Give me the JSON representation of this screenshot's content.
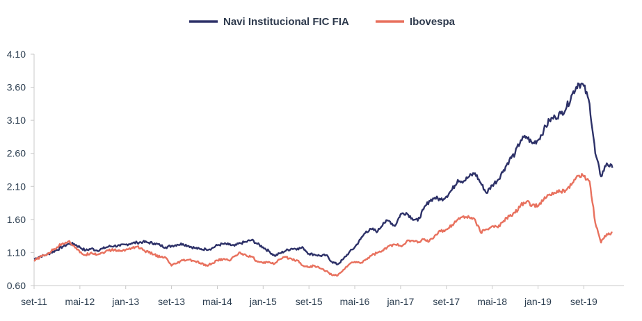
{
  "chart_data": {
    "type": "line",
    "title": "",
    "xlabel": "",
    "ylabel": "",
    "ylim": [
      0.6,
      4.1
    ],
    "yticks": [
      "0.60",
      "1.10",
      "1.60",
      "2.10",
      "2.60",
      "3.10",
      "3.60",
      "4.10"
    ],
    "xticks": [
      "set-11",
      "mai-12",
      "jan-13",
      "set-13",
      "mai-14",
      "jan-15",
      "set-15",
      "mai-16",
      "jan-17",
      "set-17",
      "mai-18",
      "jan-19",
      "set-19"
    ],
    "xlim": [
      0,
      103
    ],
    "x_unit": "months since set-11",
    "grid": false,
    "legend_position": "top-center",
    "series": [
      {
        "name": "Navi Institucional FIC FIA",
        "color": "#2d3168",
        "points": [
          [
            0,
            1.0
          ],
          [
            1,
            1.04
          ],
          [
            2,
            1.06
          ],
          [
            3,
            1.1
          ],
          [
            4,
            1.14
          ],
          [
            5,
            1.19
          ],
          [
            6,
            1.23
          ],
          [
            7,
            1.23
          ],
          [
            8,
            1.18
          ],
          [
            9,
            1.13
          ],
          [
            10,
            1.16
          ],
          [
            11,
            1.13
          ],
          [
            12,
            1.16
          ],
          [
            13,
            1.19
          ],
          [
            14,
            1.2
          ],
          [
            15,
            1.2
          ],
          [
            16,
            1.22
          ],
          [
            17,
            1.24
          ],
          [
            18,
            1.25
          ],
          [
            19,
            1.26
          ],
          [
            20,
            1.25
          ],
          [
            21,
            1.24
          ],
          [
            22,
            1.21
          ],
          [
            23,
            1.18
          ],
          [
            24,
            1.2
          ],
          [
            25,
            1.22
          ],
          [
            26,
            1.23
          ],
          [
            27,
            1.2
          ],
          [
            28,
            1.17
          ],
          [
            29,
            1.15
          ],
          [
            30,
            1.15
          ],
          [
            31,
            1.16
          ],
          [
            32,
            1.21
          ],
          [
            33,
            1.23
          ],
          [
            34,
            1.22
          ],
          [
            35,
            1.2
          ],
          [
            36,
            1.24
          ],
          [
            37,
            1.26
          ],
          [
            38,
            1.29
          ],
          [
            39,
            1.23
          ],
          [
            40,
            1.18
          ],
          [
            41,
            1.12
          ],
          [
            42,
            1.05
          ],
          [
            43,
            1.09
          ],
          [
            44,
            1.13
          ],
          [
            45,
            1.16
          ],
          [
            46,
            1.16
          ],
          [
            47,
            1.17
          ],
          [
            48,
            1.08
          ],
          [
            49,
            1.07
          ],
          [
            50,
            1.05
          ],
          [
            51,
            1.06
          ],
          [
            52,
            0.96
          ],
          [
            53,
            0.92
          ],
          [
            54,
            1.0
          ],
          [
            55,
            1.1
          ],
          [
            56,
            1.18
          ],
          [
            57,
            1.3
          ],
          [
            58,
            1.42
          ],
          [
            59,
            1.45
          ],
          [
            60,
            1.42
          ],
          [
            61,
            1.55
          ],
          [
            62,
            1.58
          ],
          [
            63,
            1.5
          ],
          [
            64,
            1.68
          ],
          [
            65,
            1.7
          ],
          [
            66,
            1.62
          ],
          [
            67,
            1.58
          ],
          [
            68,
            1.75
          ],
          [
            69,
            1.88
          ],
          [
            70,
            1.93
          ],
          [
            71,
            1.9
          ],
          [
            72,
            1.95
          ],
          [
            73,
            2.05
          ],
          [
            74,
            2.2
          ],
          [
            75,
            2.18
          ],
          [
            76,
            2.25
          ],
          [
            77,
            2.3
          ],
          [
            78,
            2.15
          ],
          [
            79,
            2.0
          ],
          [
            80,
            2.12
          ],
          [
            81,
            2.2
          ],
          [
            82,
            2.35
          ],
          [
            83,
            2.5
          ],
          [
            84,
            2.6
          ],
          [
            85,
            2.8
          ],
          [
            86,
            2.85
          ],
          [
            87,
            2.75
          ],
          [
            88,
            2.8
          ],
          [
            89,
            2.95
          ],
          [
            90,
            3.1
          ],
          [
            91,
            3.15
          ],
          [
            92,
            3.2
          ],
          [
            93,
            3.3
          ],
          [
            94,
            3.5
          ],
          [
            95,
            3.66
          ],
          [
            96,
            3.62
          ],
          [
            97,
            3.35
          ],
          [
            98,
            2.6
          ],
          [
            99,
            2.25
          ],
          [
            100,
            2.45
          ],
          [
            101,
            2.38
          ]
        ]
      },
      {
        "name": "Ibovespa",
        "color": "#e8715e",
        "points": [
          [
            0,
            0.97
          ],
          [
            1,
            1.03
          ],
          [
            2,
            1.06
          ],
          [
            3,
            1.12
          ],
          [
            4,
            1.18
          ],
          [
            5,
            1.24
          ],
          [
            6,
            1.27
          ],
          [
            7,
            1.2
          ],
          [
            8,
            1.1
          ],
          [
            9,
            1.06
          ],
          [
            10,
            1.1
          ],
          [
            11,
            1.07
          ],
          [
            12,
            1.1
          ],
          [
            13,
            1.13
          ],
          [
            14,
            1.14
          ],
          [
            15,
            1.12
          ],
          [
            16,
            1.14
          ],
          [
            17,
            1.17
          ],
          [
            18,
            1.19
          ],
          [
            19,
            1.14
          ],
          [
            20,
            1.1
          ],
          [
            21,
            1.07
          ],
          [
            22,
            1.03
          ],
          [
            23,
            1.02
          ],
          [
            24,
            0.9
          ],
          [
            25,
            0.94
          ],
          [
            26,
            0.98
          ],
          [
            27,
            0.99
          ],
          [
            28,
            0.97
          ],
          [
            29,
            0.94
          ],
          [
            30,
            0.9
          ],
          [
            31,
            0.93
          ],
          [
            32,
            0.98
          ],
          [
            33,
            1.0
          ],
          [
            34,
            0.98
          ],
          [
            35,
            1.04
          ],
          [
            36,
            1.1
          ],
          [
            37,
            1.06
          ],
          [
            38,
            1.04
          ],
          [
            39,
            0.96
          ],
          [
            40,
            0.94
          ],
          [
            41,
            0.96
          ],
          [
            42,
            0.93
          ],
          [
            43,
            1.0
          ],
          [
            44,
            1.03
          ],
          [
            45,
            1.0
          ],
          [
            46,
            0.98
          ],
          [
            47,
            0.9
          ],
          [
            48,
            0.88
          ],
          [
            49,
            0.9
          ],
          [
            50,
            0.86
          ],
          [
            51,
            0.82
          ],
          [
            52,
            0.76
          ],
          [
            53,
            0.75
          ],
          [
            54,
            0.84
          ],
          [
            55,
            0.92
          ],
          [
            56,
            0.96
          ],
          [
            57,
            0.94
          ],
          [
            58,
            1.0
          ],
          [
            59,
            1.06
          ],
          [
            60,
            1.1
          ],
          [
            61,
            1.13
          ],
          [
            62,
            1.2
          ],
          [
            63,
            1.22
          ],
          [
            64,
            1.2
          ],
          [
            65,
            1.26
          ],
          [
            66,
            1.28
          ],
          [
            67,
            1.25
          ],
          [
            68,
            1.3
          ],
          [
            69,
            1.27
          ],
          [
            70,
            1.36
          ],
          [
            71,
            1.42
          ],
          [
            72,
            1.45
          ],
          [
            73,
            1.52
          ],
          [
            74,
            1.6
          ],
          [
            75,
            1.65
          ],
          [
            76,
            1.63
          ],
          [
            77,
            1.6
          ],
          [
            78,
            1.4
          ],
          [
            79,
            1.45
          ],
          [
            80,
            1.5
          ],
          [
            81,
            1.48
          ],
          [
            82,
            1.58
          ],
          [
            83,
            1.65
          ],
          [
            84,
            1.7
          ],
          [
            85,
            1.82
          ],
          [
            86,
            1.87
          ],
          [
            87,
            1.82
          ],
          [
            88,
            1.8
          ],
          [
            89,
            1.9
          ],
          [
            90,
            1.98
          ],
          [
            91,
            2.0
          ],
          [
            92,
            2.02
          ],
          [
            93,
            2.05
          ],
          [
            94,
            2.15
          ],
          [
            95,
            2.26
          ],
          [
            96,
            2.25
          ],
          [
            97,
            2.18
          ],
          [
            98,
            1.55
          ],
          [
            99,
            1.25
          ],
          [
            100,
            1.38
          ],
          [
            101,
            1.4
          ]
        ]
      }
    ]
  }
}
